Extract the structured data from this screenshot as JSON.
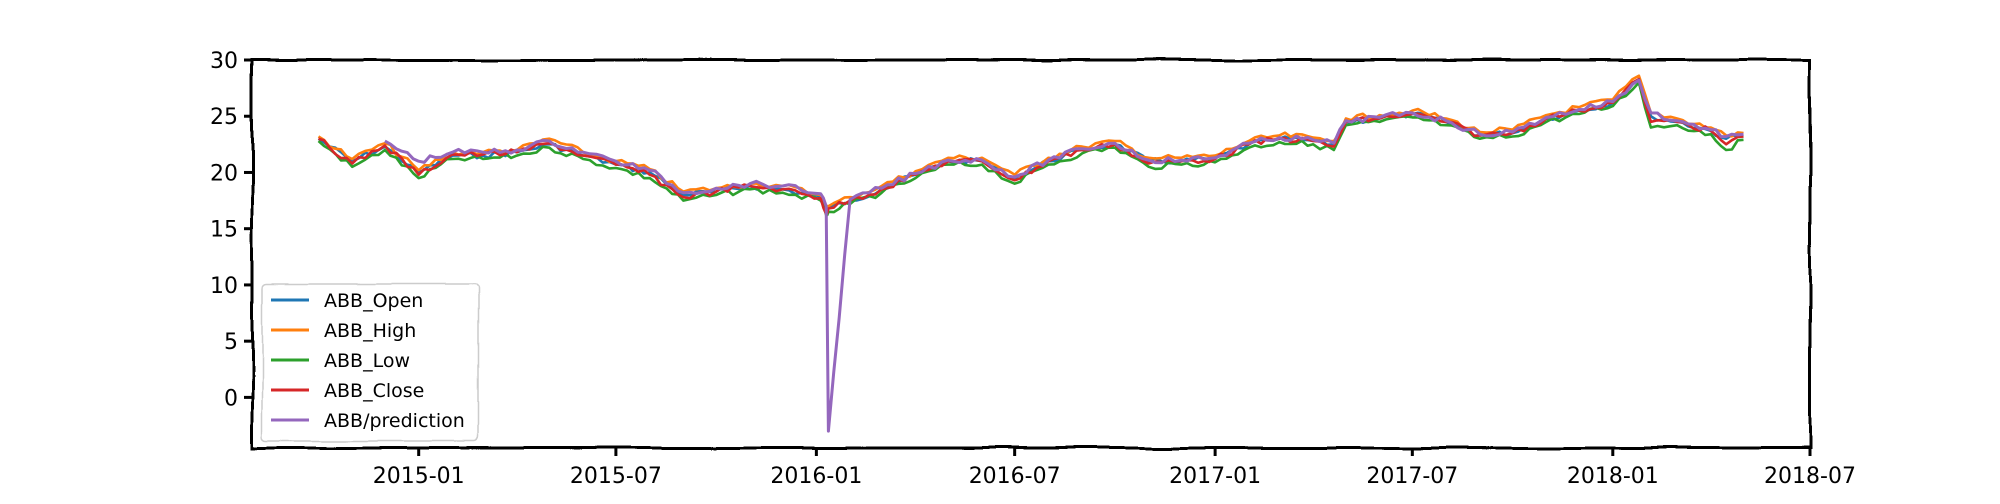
{
  "chart_data": {
    "type": "line",
    "title": "",
    "xlabel": "",
    "ylabel": "",
    "x_ticks": [
      "2015-01",
      "2015-07",
      "2016-01",
      "2016-07",
      "2017-01",
      "2017-07",
      "2018-01",
      "2018-07"
    ],
    "y_ticks": [
      0,
      5,
      10,
      15,
      20,
      25,
      30
    ],
    "xlim": [
      "2014-08-01",
      "2018-07-01"
    ],
    "ylim": [
      -4.5,
      30
    ],
    "grid": false,
    "legend_position": "lower-left",
    "style": "xkcd",
    "x": [
      "2014-10-01",
      "2014-11-01",
      "2014-12-01",
      "2015-01-01",
      "2015-02-01",
      "2015-03-01",
      "2015-04-01",
      "2015-05-01",
      "2015-06-01",
      "2015-07-01",
      "2015-08-01",
      "2015-09-01",
      "2015-10-01",
      "2015-11-01",
      "2015-12-01",
      "2016-01-05",
      "2016-01-10",
      "2016-01-12",
      "2016-02-01",
      "2016-03-01",
      "2016-04-01",
      "2016-05-01",
      "2016-06-01",
      "2016-07-01",
      "2016-08-01",
      "2016-09-01",
      "2016-10-01",
      "2016-11-01",
      "2016-12-01",
      "2017-01-01",
      "2017-02-01",
      "2017-03-01",
      "2017-04-01",
      "2017-04-20",
      "2017-05-01",
      "2017-06-01",
      "2017-07-01",
      "2017-08-01",
      "2017-09-01",
      "2017-10-01",
      "2017-11-01",
      "2017-12-01",
      "2018-01-01",
      "2018-01-25",
      "2018-02-05",
      "2018-03-01",
      "2018-04-01",
      "2018-04-15",
      "2018-05-01"
    ],
    "series": [
      {
        "name": "ABB_Open",
        "color": "#1f77b4",
        "values": [
          23.0,
          21.0,
          22.3,
          20.0,
          21.5,
          21.5,
          21.8,
          22.5,
          21.5,
          20.7,
          20.0,
          18.0,
          18.3,
          18.8,
          18.5,
          17.8,
          16.5,
          16.8,
          17.5,
          18.5,
          19.8,
          21.0,
          21.0,
          19.5,
          21.0,
          22.0,
          22.5,
          21.0,
          21.0,
          21.2,
          22.5,
          23.0,
          22.8,
          22.5,
          24.5,
          24.8,
          25.2,
          24.5,
          23.3,
          23.5,
          24.8,
          25.5,
          26.2,
          28.3,
          25.0,
          24.5,
          23.7,
          23.0,
          23.2
        ]
      },
      {
        "name": "ABB_High",
        "color": "#ff7f0e",
        "values": [
          23.2,
          21.2,
          22.6,
          20.2,
          21.8,
          21.8,
          22.0,
          23.0,
          21.8,
          21.0,
          20.3,
          18.3,
          18.6,
          19.0,
          18.8,
          18.0,
          16.8,
          17.0,
          17.8,
          18.8,
          20.1,
          21.3,
          21.3,
          19.8,
          21.3,
          22.3,
          22.8,
          21.3,
          21.3,
          21.5,
          22.8,
          23.3,
          23.1,
          22.8,
          24.8,
          25.1,
          25.5,
          24.8,
          23.6,
          23.8,
          25.1,
          25.8,
          26.5,
          28.6,
          25.3,
          24.8,
          24.0,
          23.3,
          23.5
        ]
      },
      {
        "name": "ABB_Low",
        "color": "#2ca02c",
        "values": [
          22.8,
          20.5,
          22.0,
          19.5,
          21.2,
          21.2,
          21.5,
          22.2,
          21.2,
          20.4,
          19.5,
          17.5,
          18.0,
          18.5,
          18.2,
          17.5,
          16.2,
          16.5,
          17.2,
          18.2,
          19.5,
          20.7,
          20.7,
          19.0,
          20.7,
          21.7,
          22.2,
          20.5,
          20.7,
          20.9,
          22.2,
          22.7,
          22.5,
          22.0,
          24.2,
          24.5,
          24.9,
          24.2,
          23.0,
          23.2,
          24.5,
          25.2,
          25.9,
          28.0,
          24.0,
          24.2,
          23.4,
          22.0,
          22.9
        ]
      },
      {
        "name": "ABB_Close",
        "color": "#d62728",
        "values": [
          23.0,
          20.8,
          22.4,
          19.8,
          21.6,
          21.6,
          21.8,
          22.6,
          21.5,
          20.7,
          19.8,
          17.8,
          18.3,
          18.8,
          18.5,
          17.7,
          16.3,
          16.8,
          17.5,
          18.5,
          19.8,
          21.0,
          21.0,
          19.3,
          21.0,
          22.0,
          22.5,
          20.8,
          21.0,
          21.2,
          22.5,
          23.0,
          22.8,
          22.3,
          24.5,
          24.8,
          25.2,
          24.5,
          23.3,
          23.5,
          24.8,
          25.5,
          26.2,
          28.3,
          24.5,
          24.5,
          23.7,
          22.5,
          23.2
        ]
      },
      {
        "name": "ABB/prediction",
        "color": "#9467bd",
        "values": [
          null,
          null,
          22.8,
          21.0,
          21.8,
          21.8,
          22.0,
          22.8,
          21.8,
          21.0,
          20.2,
          18.2,
          18.6,
          19.0,
          18.8,
          18.1,
          17.0,
          -3.0,
          17.6,
          18.6,
          19.9,
          21.1,
          21.1,
          19.6,
          21.1,
          22.1,
          22.6,
          21.1,
          21.1,
          21.3,
          22.6,
          23.1,
          22.9,
          22.6,
          24.6,
          24.9,
          25.3,
          24.6,
          23.4,
          23.6,
          24.9,
          25.6,
          26.3,
          28.2,
          25.3,
          24.6,
          23.8,
          23.2,
          23.4
        ]
      }
    ]
  }
}
